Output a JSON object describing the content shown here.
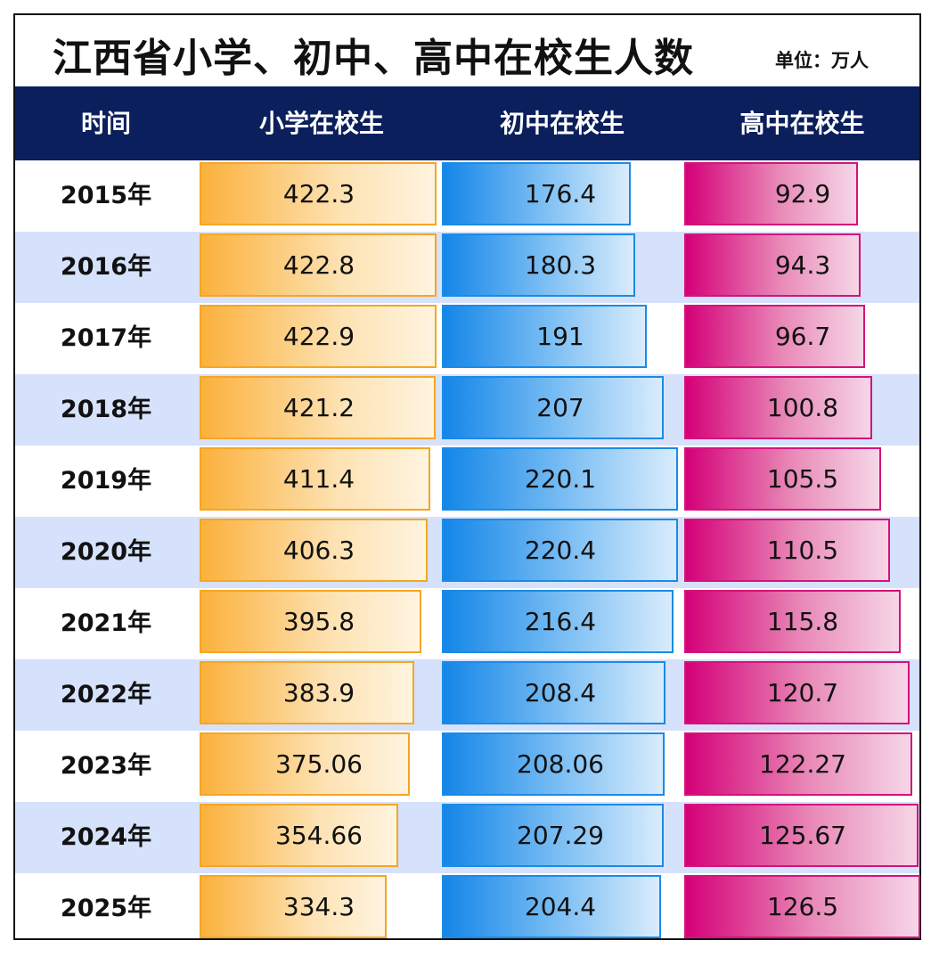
{
  "title": "江西省小学、初中、高中在校生人数",
  "unit": "单位：万人",
  "header": {
    "time": "时间",
    "primary": "小学在校生",
    "middle": "初中在校生",
    "high": "高中在校生"
  },
  "colors": {
    "header_bg": "#0b1f5c",
    "primary": "#fbb13c",
    "middle": "#1486e8",
    "high": "#d40078",
    "alt_row": "#d6e1fb"
  },
  "chart_data": {
    "type": "table",
    "title": "江西省小学、初中、高中在校生人数",
    "unit": "单位：万人",
    "columns": [
      "时间",
      "小学在校生",
      "初中在校生",
      "高中在校生"
    ],
    "categories": [
      "2015年",
      "2016年",
      "2017年",
      "2018年",
      "2019年",
      "2020年",
      "2021年",
      "2022年",
      "2023年",
      "2024年",
      "2025年"
    ],
    "series": [
      {
        "name": "小学在校生",
        "values": [
          422.3,
          422.8,
          422.9,
          421.2,
          411.4,
          406.3,
          395.8,
          383.9,
          375.06,
          354.66,
          334.3
        ],
        "labels": [
          "422.3",
          "422.8",
          "422.9",
          "421.2",
          "411.4",
          "406.3",
          "395.8",
          "383.9",
          "375.06",
          "354.66",
          "334.3"
        ]
      },
      {
        "name": "初中在校生",
        "values": [
          176.4,
          180.3,
          191,
          207,
          220.1,
          220.4,
          216.4,
          208.4,
          208.06,
          207.29,
          204.4
        ],
        "labels": [
          "176.4",
          "180.3",
          "191",
          "207",
          "220.1",
          "220.4",
          "216.4",
          "208.4",
          "208.06",
          "207.29",
          "204.4"
        ]
      },
      {
        "name": "高中在校生",
        "values": [
          92.9,
          94.3,
          96.7,
          100.8,
          105.5,
          110.5,
          115.8,
          120.7,
          122.27,
          125.67,
          126.5
        ],
        "labels": [
          "92.9",
          "94.3",
          "96.7",
          "100.8",
          "105.5",
          "110.5",
          "115.8",
          "120.7",
          "122.27",
          "125.67",
          "126.5"
        ]
      }
    ]
  }
}
